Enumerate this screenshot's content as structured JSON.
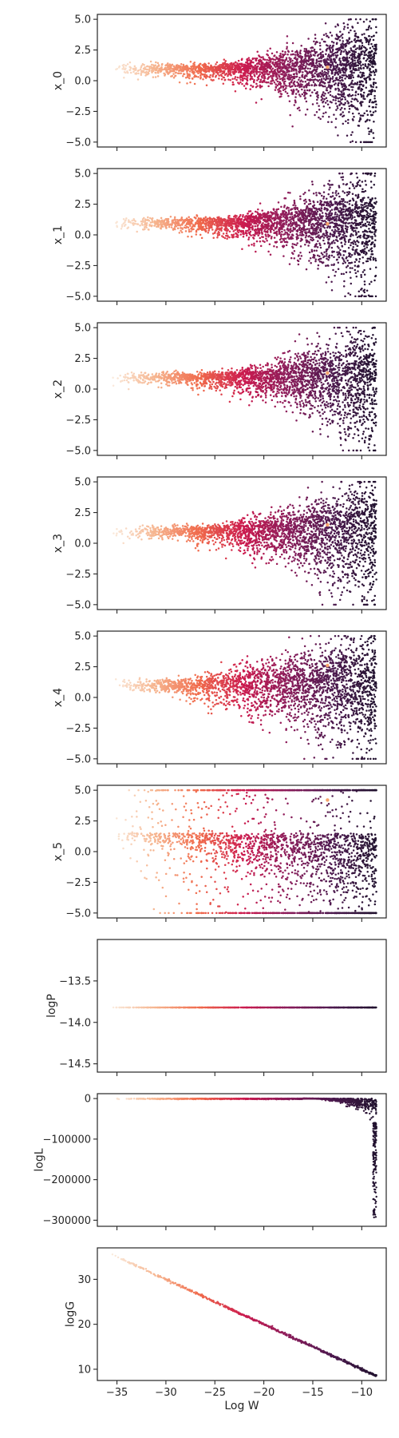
{
  "chart_data": {
    "type": "scatter",
    "layout": "vertical stack of 9 subplots with shared x axis",
    "xlabel": "Log W",
    "xlim": [
      -37,
      -7.5
    ],
    "x_ticks": [
      -35,
      -30,
      -25,
      -20,
      -15,
      -10
    ],
    "x_tick_labels": [
      "−35",
      "−30",
      "−25",
      "−20",
      "−15",
      "−10"
    ],
    "color_encoding": "Log W (rocket colormap, light cream at low Log W to dark purple at high Log W)",
    "colors": [
      "#faebdd",
      "#f6b48e",
      "#f0694b",
      "#cb1b4f",
      "#8a1d5b",
      "#4d1a4f",
      "#21122f"
    ],
    "x_range": [
      -35.5,
      -8.5
    ],
    "panels": [
      {
        "ylabel": "x_0",
        "ylim": [
          -5.4,
          5.4
        ],
        "y_ticks": [
          5.0,
          2.5,
          0.0,
          -2.5,
          -5.0
        ],
        "y_tick_labels": [
          "5.0",
          "2.5",
          "0.0",
          "−2.5",
          "−5.0"
        ],
        "shape": "wedge",
        "center": 1.0,
        "upper_end": 5.0,
        "lower_end": -5.0,
        "narrow_until": -25,
        "outlier": [
          -13.5,
          1.1
        ]
      },
      {
        "ylabel": "x_1",
        "ylim": [
          -5.4,
          5.4
        ],
        "y_ticks": [
          5.0,
          2.5,
          0.0,
          -2.5,
          -5.0
        ],
        "y_tick_labels": [
          "5.0",
          "2.5",
          "0.0",
          "−2.5",
          "−5.0"
        ],
        "shape": "wedge",
        "center": 1.0,
        "upper_end": 5.0,
        "lower_end": -5.0,
        "narrow_until": -25,
        "outlier": [
          -13.5,
          0.9
        ]
      },
      {
        "ylabel": "x_2",
        "ylim": [
          -5.4,
          5.4
        ],
        "y_ticks": [
          5.0,
          2.5,
          0.0,
          -2.5,
          -5.0
        ],
        "y_tick_labels": [
          "5.0",
          "2.5",
          "0.0",
          "−2.5",
          "−5.0"
        ],
        "shape": "wedge",
        "center": 1.0,
        "upper_end": 5.0,
        "lower_end": -5.0,
        "narrow_until": -25,
        "outlier": [
          -13.5,
          1.3
        ]
      },
      {
        "ylabel": "x_3",
        "ylim": [
          -5.4,
          5.4
        ],
        "y_ticks": [
          5.0,
          2.5,
          0.0,
          -2.5,
          -5.0
        ],
        "y_tick_labels": [
          "5.0",
          "2.5",
          "0.0",
          "−2.5",
          "−5.0"
        ],
        "shape": "wedge",
        "center": 1.0,
        "upper_end": 5.0,
        "lower_end": -5.0,
        "narrow_until": -27,
        "outlier": [
          -13.5,
          1.5
        ]
      },
      {
        "ylabel": "x_4",
        "ylim": [
          -5.4,
          5.4
        ],
        "y_ticks": [
          5.0,
          2.5,
          0.0,
          -2.5,
          -5.0
        ],
        "y_tick_labels": [
          "5.0",
          "2.5",
          "0.0",
          "−2.5",
          "−5.0"
        ],
        "shape": "wedge",
        "center": 1.0,
        "upper_end": 5.0,
        "lower_end": -5.0,
        "narrow_until": -30,
        "outlier": [
          -13.5,
          2.6
        ]
      },
      {
        "ylabel": "x_5",
        "ylim": [
          -5.4,
          5.4
        ],
        "y_ticks": [
          5.0,
          2.5,
          0.0,
          -2.5,
          -5.0
        ],
        "y_tick_labels": [
          "5.0",
          "2.5",
          "0.0",
          "−2.5",
          "−5.0"
        ],
        "shape": "wedge",
        "center": 1.5,
        "upper_end": 5.0,
        "lower_end": -5.0,
        "narrow_until": -34,
        "outlier": [
          -13.5,
          4.2
        ]
      },
      {
        "ylabel": "logP",
        "ylim": [
          -14.6,
          -13.0
        ],
        "y_ticks": [
          -13.5,
          -14.0,
          -14.5
        ],
        "y_tick_labels": [
          "−13.5",
          "−14.0",
          "−14.5"
        ],
        "shape": "constant",
        "value": -13.82
      },
      {
        "ylabel": "logL",
        "ylim": [
          -315000,
          12000
        ],
        "y_ticks": [
          0,
          -100000,
          -200000,
          -300000
        ],
        "y_tick_labels": [
          "0",
          "−100000",
          "−200000",
          "−300000"
        ],
        "shape": "logL",
        "flat_value": 0,
        "drop_start": -16,
        "min_value": -295000
      },
      {
        "ylabel": "logG",
        "ylim": [
          7.5,
          37
        ],
        "y_ticks": [
          30,
          20,
          10
        ],
        "y_tick_labels": [
          "30",
          "20",
          "10"
        ],
        "shape": "line",
        "points": [
          [
            -35.5,
            35.5
          ],
          [
            -8.5,
            8.5
          ]
        ]
      }
    ]
  }
}
